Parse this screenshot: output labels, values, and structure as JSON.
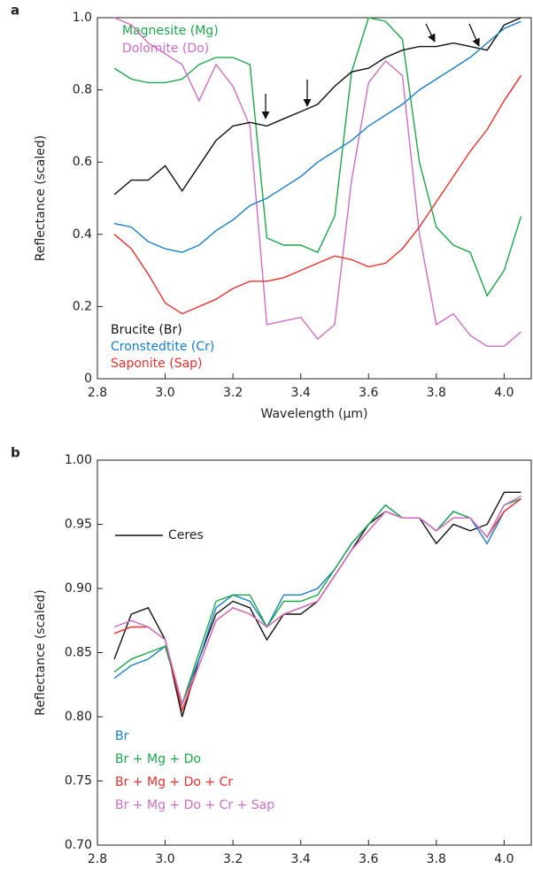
{
  "chart_data": [
    {
      "type": "line",
      "label": "a",
      "xlabel": "Wavelength (μm)",
      "ylabel": "Reflectance (scaled)",
      "xlim": [
        2.8,
        4.08
      ],
      "ylim": [
        0,
        1.0
      ],
      "xticks": [
        2.8,
        {
          "value": 3,
          "label": "3.0"
        },
        3.2,
        3.4,
        3.6,
        3.8,
        {
          "value": 4,
          "label": "4.0"
        }
      ],
      "yticks": [
        0,
        0.2,
        0.4,
        0.6,
        0.8,
        {
          "value": 1,
          "label": "1.0"
        }
      ],
      "x": [
        2.85,
        2.9,
        2.95,
        3.0,
        3.05,
        3.1,
        3.15,
        3.2,
        3.25,
        3.3,
        3.35,
        3.4,
        3.45,
        3.5,
        3.55,
        3.6,
        3.65,
        3.7,
        3.75,
        3.8,
        3.85,
        3.9,
        3.95,
        4.0,
        4.05
      ],
      "series": [
        {
          "name": "Magnesite (Mg)",
          "color": "#1fa64a",
          "values": [
            0.86,
            0.83,
            0.82,
            0.82,
            0.83,
            0.87,
            0.89,
            0.89,
            0.87,
            0.39,
            0.37,
            0.37,
            0.35,
            0.45,
            0.85,
            1.0,
            0.99,
            0.94,
            0.6,
            0.42,
            0.37,
            0.35,
            0.23,
            0.3,
            0.45
          ]
        },
        {
          "name": "Dolomite (Do)",
          "color": "#cc6fc4",
          "values": [
            1.0,
            0.98,
            0.93,
            0.9,
            0.87,
            0.77,
            0.87,
            0.81,
            0.7,
            0.15,
            0.16,
            0.17,
            0.11,
            0.15,
            0.55,
            0.82,
            0.88,
            0.84,
            0.4,
            0.15,
            0.18,
            0.12,
            0.09,
            0.09,
            0.13
          ]
        },
        {
          "name": "Brucite (Br)",
          "color": "#111111",
          "values": [
            0.51,
            0.55,
            0.55,
            0.59,
            0.52,
            0.59,
            0.66,
            0.7,
            0.71,
            0.7,
            0.72,
            0.74,
            0.76,
            0.81,
            0.85,
            0.86,
            0.89,
            0.91,
            0.92,
            0.92,
            0.93,
            0.92,
            0.91,
            0.98,
            1.0
          ]
        },
        {
          "name": "Cronstedtite (Cr)",
          "color": "#1a7ec4",
          "values": [
            0.43,
            0.42,
            0.38,
            0.36,
            0.35,
            0.37,
            0.41,
            0.44,
            0.48,
            0.5,
            0.53,
            0.56,
            0.6,
            0.63,
            0.66,
            0.7,
            0.73,
            0.76,
            0.8,
            0.83,
            0.86,
            0.89,
            0.93,
            0.97,
            0.99
          ]
        },
        {
          "name": "Saponite (Sap)",
          "color": "#e8302e",
          "values": [
            0.4,
            0.36,
            0.29,
            0.21,
            0.18,
            0.2,
            0.22,
            0.25,
            0.27,
            0.27,
            0.28,
            0.3,
            0.32,
            0.34,
            0.33,
            0.31,
            0.32,
            0.36,
            0.42,
            0.49,
            0.56,
            0.63,
            0.69,
            0.77,
            0.84
          ]
        }
      ]
    },
    {
      "type": "line",
      "label": "b",
      "xlabel": "Wavelength (μm)",
      "ylabel": "Reflectance (scaled)",
      "xlim": [
        2.8,
        4.08
      ],
      "ylim": [
        0.7,
        1.0
      ],
      "xticks": [
        2.8,
        {
          "value": 3,
          "label": "3.0"
        },
        3.2,
        3.4,
        3.6,
        3.8,
        {
          "value": 4,
          "label": "4.0"
        }
      ],
      "yticks": [
        {
          "value": 0.7,
          "label": "0.70"
        },
        0.75,
        {
          "value": 0.8,
          "label": "0.80"
        },
        0.85,
        {
          "value": 0.9,
          "label": "0.90"
        },
        0.95,
        {
          "value": 1,
          "label": "1.00"
        }
      ],
      "x": [
        2.85,
        2.9,
        2.95,
        3.0,
        3.05,
        3.1,
        3.15,
        3.2,
        3.25,
        3.3,
        3.35,
        3.4,
        3.45,
        3.5,
        3.55,
        3.6,
        3.65,
        3.7,
        3.75,
        3.8,
        3.85,
        3.9,
        3.95,
        4.0,
        4.05
      ],
      "series": [
        {
          "name": "Ceres",
          "color": "#111111",
          "values": [
            0.845,
            0.88,
            0.885,
            0.86,
            0.8,
            0.845,
            0.88,
            0.89,
            0.885,
            0.86,
            0.88,
            0.88,
            0.89,
            0.91,
            0.93,
            0.95,
            0.96,
            0.955,
            0.955,
            0.935,
            0.95,
            0.945,
            0.95,
            0.975,
            0.975
          ]
        },
        {
          "name": "Br",
          "color": "#1a7ec4",
          "values": [
            0.83,
            0.84,
            0.845,
            0.855,
            0.81,
            0.845,
            0.885,
            0.895,
            0.89,
            0.87,
            0.895,
            0.895,
            0.9,
            0.915,
            0.935,
            0.95,
            0.965,
            0.955,
            0.955,
            0.945,
            0.96,
            0.955,
            0.935,
            0.96,
            0.97
          ]
        },
        {
          "name": "Br + Mg + Do",
          "color": "#1fa64a",
          "values": [
            0.835,
            0.845,
            0.85,
            0.855,
            0.81,
            0.85,
            0.89,
            0.895,
            0.895,
            0.87,
            0.89,
            0.89,
            0.895,
            0.915,
            0.935,
            0.95,
            0.965,
            0.955,
            0.955,
            0.945,
            0.96,
            0.955,
            0.94,
            0.965,
            0.97
          ]
        },
        {
          "name": "Br + Mg + Do + Cr",
          "color": "#e8302e",
          "values": [
            0.865,
            0.87,
            0.87,
            0.86,
            0.805,
            0.84,
            0.875,
            0.885,
            0.88,
            0.87,
            0.88,
            0.885,
            0.89,
            0.91,
            0.93,
            0.945,
            0.96,
            0.955,
            0.955,
            0.945,
            0.955,
            0.955,
            0.94,
            0.96,
            0.97
          ]
        },
        {
          "name": "Br + Mg + Do + Cr + Sap",
          "color": "#cc6fc4",
          "values": [
            0.87,
            0.875,
            0.87,
            0.86,
            0.81,
            0.84,
            0.875,
            0.885,
            0.88,
            0.87,
            0.88,
            0.885,
            0.89,
            0.91,
            0.93,
            0.945,
            0.96,
            0.955,
            0.955,
            0.945,
            0.955,
            0.955,
            0.94,
            0.965,
            0.972
          ]
        }
      ]
    }
  ]
}
